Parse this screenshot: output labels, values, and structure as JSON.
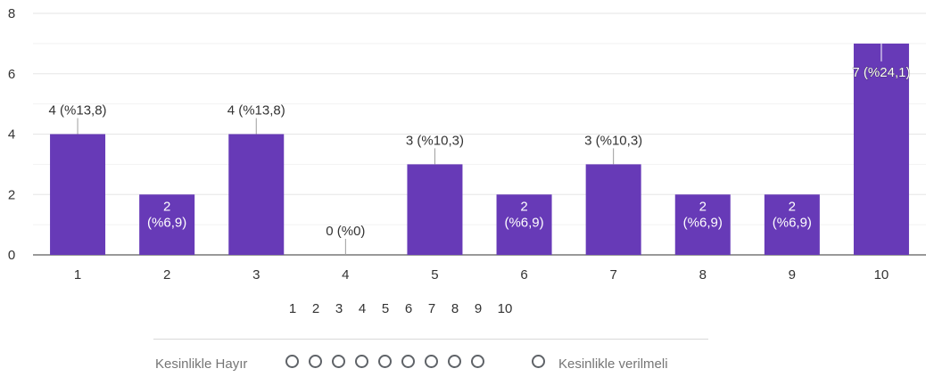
{
  "chart_data": {
    "type": "bar",
    "categories": [
      "1",
      "2",
      "3",
      "4",
      "5",
      "6",
      "7",
      "8",
      "9",
      "10"
    ],
    "values": [
      4,
      2,
      4,
      0,
      3,
      2,
      3,
      2,
      2,
      7
    ],
    "data_labels": [
      "4 (%13,8)",
      "2 (%6,9)",
      "4 (%13,8)",
      "0 (%0)",
      "3 (%10,3)",
      "2 (%6,9)",
      "3 (%10,3)",
      "2 (%6,9)",
      "2 (%6,9)",
      "7 (%24,1)"
    ],
    "y_ticks": [
      "0",
      "2",
      "4",
      "6",
      "8"
    ],
    "ylim": [
      0,
      8
    ],
    "grid": true,
    "bar_color": "#673ab7",
    "title": "",
    "xlabel": "",
    "ylabel": ""
  },
  "scale": {
    "numbers": [
      "1",
      "2",
      "3",
      "4",
      "5",
      "6",
      "7",
      "8",
      "9",
      "10"
    ],
    "left_label": "Kesinlikle Hayır",
    "right_label": "Kesinlikle verilmeli"
  }
}
